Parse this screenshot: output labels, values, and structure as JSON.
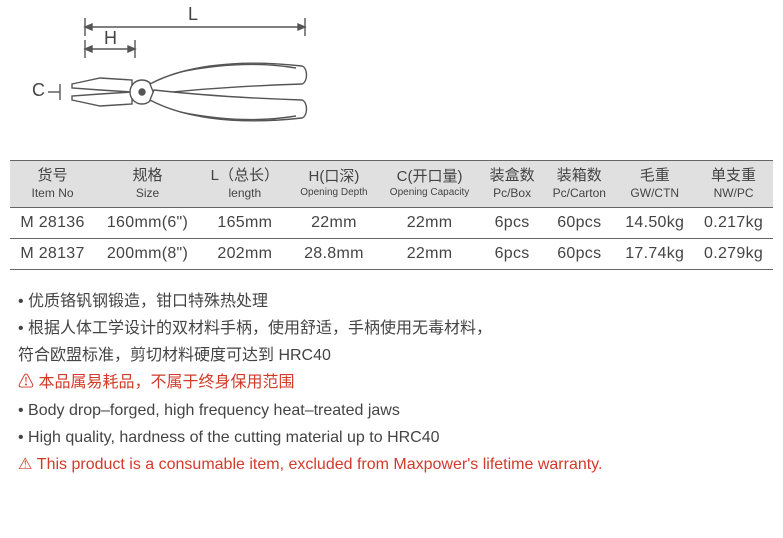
{
  "diagram": {
    "label_L": "L",
    "label_H": "H",
    "label_C": "C",
    "stroke": "#555555",
    "fill": "#ffffff"
  },
  "table": {
    "header_bg": "#e0e0e0",
    "border_color": "#666666",
    "columns": [
      {
        "cn": "货号",
        "en": "Item No"
      },
      {
        "cn": "规格",
        "en": "Size"
      },
      {
        "cn": "L（总长）",
        "en": "length"
      },
      {
        "cn": "H(口深)",
        "en": "Opening Depth",
        "small": true
      },
      {
        "cn": "C(开口量)",
        "en": "Opening Capacity",
        "small": true
      },
      {
        "cn": "装盒数",
        "en": "Pc/Box"
      },
      {
        "cn": "装箱数",
        "en": "Pc/Carton"
      },
      {
        "cn": "毛重",
        "en": "GW/CTN"
      },
      {
        "cn": "单支重",
        "en": "NW/PC"
      }
    ],
    "rows": [
      [
        "M 28136",
        "160mm(6\")",
        "165mm",
        "22mm",
        "22mm",
        "6pcs",
        "60pcs",
        "14.50kg",
        "0.217kg"
      ],
      [
        "M 28137",
        "200mm(8\")",
        "202mm",
        "28.8mm",
        "22mm",
        "6pcs",
        "60pcs",
        "17.74kg",
        "0.279kg"
      ]
    ]
  },
  "notes": [
    {
      "type": "bullet",
      "text": "优质铬钒钢锻造，钳口特殊热处理"
    },
    {
      "type": "bullet",
      "text": "根据人体工学设计的双材料手柄，使用舒适，手柄使用无毒材料，"
    },
    {
      "type": "cont",
      "text": "符合欧盟标准，剪切材料硬度可达到 HRC40"
    },
    {
      "type": "warn",
      "text": "本品属易耗品，不属于终身保用范围"
    },
    {
      "type": "bullet",
      "text": "Body drop–forged, high frequency heat–treated jaws"
    },
    {
      "type": "bullet",
      "text": "High quality, hardness of the cutting material up to HRC40"
    },
    {
      "type": "warn",
      "text": "This product is a consumable item, excluded from Maxpower's lifetime warranty."
    }
  ]
}
